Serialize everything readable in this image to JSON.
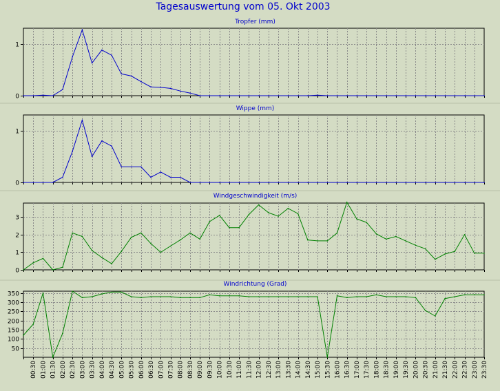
{
  "page": {
    "title": "Tagesauswertung vom 05. Okt 2003"
  },
  "colors": {
    "background": "#d4dcc4",
    "plot_background": "#d4dcc4",
    "frame": "#000000",
    "grid": "#8a8a8a",
    "title_text": "#0000cc",
    "axis_text": "#000000",
    "blue_series": "#0000cc",
    "green_series": "#008000"
  },
  "chart_data": [
    {
      "type": "line",
      "title": "Tropfer (mm)",
      "ylim": [
        0,
        1.3
      ],
      "yticks": [
        0,
        1
      ],
      "grid": true,
      "color": "blue",
      "x": [
        "00:00",
        "00:30",
        "01:00",
        "01:30",
        "02:00",
        "02:30",
        "03:00",
        "03:30",
        "04:00",
        "04:30",
        "05:00",
        "05:30",
        "06:00",
        "06:30",
        "07:00",
        "07:30",
        "08:00",
        "08:30",
        "09:00",
        "09:30",
        "10:00",
        "10:30",
        "11:00",
        "11:30",
        "12:00",
        "12:30",
        "13:00",
        "13:30",
        "14:00",
        "14:30",
        "15:00",
        "15:30",
        "16:00",
        "16:30",
        "17:00",
        "17:30",
        "18:00",
        "18:30",
        "19:00",
        "19:30",
        "20:00",
        "20:30",
        "21:00",
        "21:30",
        "22:00",
        "22:30",
        "23:00",
        "23:30"
      ],
      "values": [
        0,
        0,
        0.01,
        0,
        0.12,
        0.75,
        1.27,
        0.63,
        0.88,
        0.78,
        0.42,
        0.38,
        0.27,
        0.17,
        0.16,
        0.14,
        0.09,
        0.05,
        0,
        0,
        0,
        0,
        0,
        0,
        0,
        0,
        0,
        0,
        0,
        0,
        0.01,
        0,
        0,
        0,
        0,
        0,
        0,
        0,
        0,
        0,
        0,
        0,
        0,
        0,
        0,
        0,
        0,
        0
      ]
    },
    {
      "type": "line",
      "title": "Wippe (mm)",
      "ylim": [
        0,
        1.3
      ],
      "yticks": [
        0,
        1
      ],
      "grid": true,
      "color": "blue",
      "x": [
        "00:00",
        "00:30",
        "01:00",
        "01:30",
        "02:00",
        "02:30",
        "03:00",
        "03:30",
        "04:00",
        "04:30",
        "05:00",
        "05:30",
        "06:00",
        "06:30",
        "07:00",
        "07:30",
        "08:00",
        "08:30",
        "09:00",
        "09:30",
        "10:00",
        "10:30",
        "11:00",
        "11:30",
        "12:00",
        "12:30",
        "13:00",
        "13:30",
        "14:00",
        "14:30",
        "15:00",
        "15:30",
        "16:00",
        "16:30",
        "17:00",
        "17:30",
        "18:00",
        "18:30",
        "19:00",
        "19:30",
        "20:00",
        "20:30",
        "21:00",
        "21:30",
        "22:00",
        "22:30",
        "23:00",
        "23:30"
      ],
      "values": [
        0,
        0,
        0,
        0,
        0.1,
        0.6,
        1.2,
        0.5,
        0.8,
        0.7,
        0.3,
        0.3,
        0.3,
        0.1,
        0.2,
        0.1,
        0.1,
        0,
        0,
        0,
        0,
        0,
        0,
        0,
        0,
        0,
        0,
        0,
        0,
        0,
        0,
        0,
        0,
        0,
        0,
        0,
        0,
        0,
        0,
        0,
        0,
        0,
        0,
        0,
        0,
        0,
        0,
        0
      ]
    },
    {
      "type": "line",
      "title": "Windgeschwindigkeit (m/s)",
      "ylim": [
        0,
        3.8
      ],
      "yticks": [
        0,
        1,
        2,
        3
      ],
      "grid": true,
      "color": "green",
      "x": [
        "00:00",
        "00:30",
        "01:00",
        "01:30",
        "02:00",
        "02:30",
        "03:00",
        "03:30",
        "04:00",
        "04:30",
        "05:00",
        "05:30",
        "06:00",
        "06:30",
        "07:00",
        "07:30",
        "08:00",
        "08:30",
        "09:00",
        "09:30",
        "10:00",
        "10:30",
        "11:00",
        "11:30",
        "12:00",
        "12:30",
        "13:00",
        "13:30",
        "14:00",
        "14:30",
        "15:00",
        "15:30",
        "16:00",
        "16:30",
        "17:00",
        "17:30",
        "18:00",
        "18:30",
        "19:00",
        "19:30",
        "20:00",
        "20:30",
        "21:00",
        "21:30",
        "22:00",
        "22:30",
        "23:00",
        "23:30"
      ],
      "values": [
        0,
        0.4,
        0.65,
        0,
        0.15,
        2.1,
        1.9,
        1.1,
        0.7,
        0.35,
        1.05,
        1.85,
        2.1,
        1.5,
        1.0,
        1.35,
        1.7,
        2.1,
        1.75,
        2.75,
        3.1,
        2.4,
        2.4,
        3.15,
        3.7,
        3.25,
        3.05,
        3.5,
        3.2,
        1.7,
        1.65,
        1.65,
        2.1,
        3.85,
        2.9,
        2.7,
        2.05,
        1.75,
        1.9,
        1.65,
        1.4,
        1.2,
        0.6,
        0.9,
        1.05,
        2.0,
        0.95,
        0.95
      ]
    },
    {
      "type": "line",
      "title": "Windrichtung (Grad)",
      "ylim": [
        0,
        360
      ],
      "yticks": [
        50,
        100,
        150,
        200,
        250,
        300,
        350
      ],
      "grid": true,
      "color": "green",
      "x": [
        "00:00",
        "00:30",
        "01:00",
        "01:30",
        "02:00",
        "02:30",
        "03:00",
        "03:30",
        "04:00",
        "04:30",
        "05:00",
        "05:30",
        "06:00",
        "06:30",
        "07:00",
        "07:30",
        "08:00",
        "08:30",
        "09:00",
        "09:30",
        "10:00",
        "10:30",
        "11:00",
        "11:30",
        "12:00",
        "12:30",
        "13:00",
        "13:30",
        "14:00",
        "14:30",
        "15:00",
        "15:30",
        "16:00",
        "16:30",
        "17:00",
        "17:30",
        "18:00",
        "18:30",
        "19:00",
        "19:30",
        "20:00",
        "20:30",
        "21:00",
        "21:30",
        "22:00",
        "22:30",
        "23:00",
        "23:30"
      ],
      "values": [
        120,
        180,
        350,
        0,
        130,
        360,
        325,
        330,
        345,
        355,
        355,
        330,
        325,
        330,
        330,
        330,
        325,
        325,
        325,
        340,
        335,
        335,
        335,
        330,
        330,
        330,
        330,
        330,
        330,
        330,
        330,
        0,
        335,
        325,
        330,
        330,
        340,
        330,
        330,
        330,
        325,
        255,
        225,
        320,
        330,
        340,
        340,
        340
      ]
    }
  ],
  "x_axis": {
    "tick_labels": [
      "00:30",
      "01:00",
      "01:30",
      "02:00",
      "02:30",
      "03:00",
      "03:30",
      "04:00",
      "04:30",
      "05:00",
      "05:30",
      "06:00",
      "06:30",
      "07:00",
      "07:30",
      "08:00",
      "08:30",
      "09:00",
      "09:30",
      "10:00",
      "10:30",
      "11:00",
      "11:30",
      "12:00",
      "12:30",
      "13:00",
      "13:30",
      "14:00",
      "14:30",
      "15:00",
      "15:30",
      "16:00",
      "16:30",
      "17:00",
      "17:30",
      "18:00",
      "18:30",
      "19:00",
      "19:30",
      "20:00",
      "20:30",
      "21:00",
      "21:30",
      "22:00",
      "22:30",
      "23:00",
      "23:30"
    ]
  }
}
